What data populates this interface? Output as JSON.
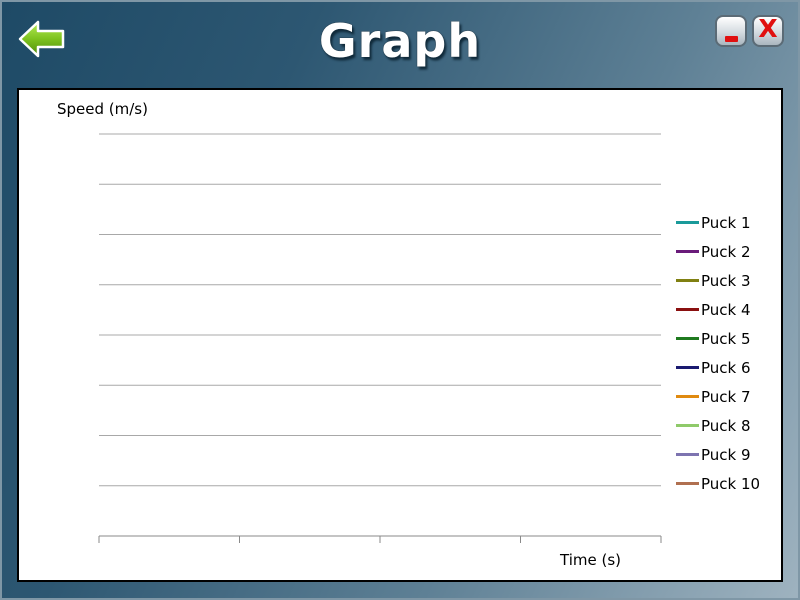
{
  "window": {
    "title": "Graph",
    "back_icon": "back-arrow-icon",
    "minimize_icon": "minimize-icon",
    "close_label": "X"
  },
  "colors": {
    "accent_green": "#7dc21e",
    "window_button_red": "#e01010"
  },
  "chart_data": {
    "type": "line",
    "title": "",
    "xlabel": "Time (s)",
    "ylabel": "Speed (m/s)",
    "grid": "horizontal",
    "legend_position": "right",
    "series": [
      {
        "name": "Puck 1",
        "color": "#1a9a9a",
        "values": []
      },
      {
        "name": "Puck 2",
        "color": "#6a1b7a",
        "values": []
      },
      {
        "name": "Puck 3",
        "color": "#808012",
        "values": []
      },
      {
        "name": "Puck 4",
        "color": "#8a1010",
        "values": []
      },
      {
        "name": "Puck 5",
        "color": "#1f7a1f",
        "values": []
      },
      {
        "name": "Puck 6",
        "color": "#1a1a70",
        "values": []
      },
      {
        "name": "Puck 7",
        "color": "#e08a10",
        "values": []
      },
      {
        "name": "Puck 8",
        "color": "#8fca6a",
        "values": []
      },
      {
        "name": "Puck 9",
        "color": "#7d74b0",
        "values": []
      },
      {
        "name": "Puck 10",
        "color": "#b07050",
        "values": []
      }
    ]
  }
}
